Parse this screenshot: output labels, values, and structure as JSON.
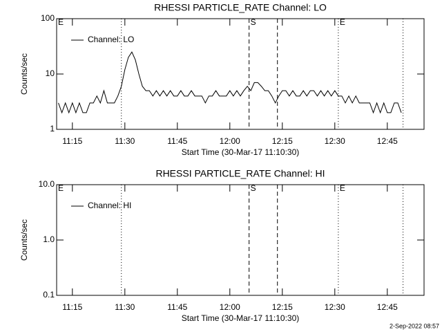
{
  "chart_data": [
    {
      "type": "line",
      "title": "RHESSI PARTICLE_RATE Channel: LO",
      "ylabel": "Counts/sec",
      "xlabel": "Start Time (30-Mar-17 11:10:30)",
      "log": true,
      "ylim": [
        1,
        100
      ],
      "yticks": [
        1,
        10,
        100
      ],
      "xlim": [
        670.5,
        775.5
      ],
      "xticks": [
        {
          "value": 675,
          "label": "11:15"
        },
        {
          "value": 690,
          "label": "11:30"
        },
        {
          "value": 705,
          "label": "11:45"
        },
        {
          "value": 720,
          "label": "12:00"
        },
        {
          "value": 735,
          "label": "12:15"
        },
        {
          "value": 750,
          "label": "12:30"
        },
        {
          "value": 765,
          "label": "12:45"
        }
      ],
      "legend": "upper left",
      "markers": [
        {
          "x": 670.5,
          "label": "E",
          "style": "dotted"
        },
        {
          "x": 689,
          "style": "dotted"
        },
        {
          "x": 725.5,
          "label": "S",
          "style": "dashed"
        },
        {
          "x": 733.6,
          "style": "dashed"
        },
        {
          "x": 751,
          "label": "E",
          "style": "dotted"
        },
        {
          "x": 769.5,
          "style": "dotted"
        }
      ],
      "series": [
        {
          "name": "Channel: LO",
          "color": "#000000",
          "x": [
            671,
            672,
            673,
            674,
            675,
            676,
            677,
            678,
            679,
            680,
            681,
            682,
            683,
            684,
            685,
            686,
            687,
            688,
            689,
            690,
            691,
            692,
            693,
            694,
            695,
            696,
            697,
            698,
            699,
            700,
            701,
            702,
            703,
            704,
            705,
            706,
            707,
            708,
            709,
            710,
            711,
            712,
            713,
            714,
            715,
            716,
            717,
            718,
            719,
            720,
            721,
            722,
            723,
            724,
            725,
            726,
            727,
            728,
            729,
            730,
            731,
            732,
            733,
            734,
            735,
            736,
            737,
            738,
            739,
            740,
            741,
            742,
            743,
            744,
            745,
            746,
            747,
            748,
            749,
            750,
            751,
            752,
            753,
            754,
            755,
            756,
            757,
            758,
            759,
            760,
            761,
            762,
            763,
            764,
            765,
            766,
            767,
            768,
            769
          ],
          "values": [
            3,
            2,
            3,
            2,
            3,
            2,
            3,
            2,
            2,
            3,
            3,
            4,
            3,
            5,
            3,
            3,
            3,
            4,
            6,
            12,
            20,
            25,
            18,
            10,
            6,
            5,
            5,
            4,
            5,
            4,
            5,
            4,
            5,
            4,
            4,
            5,
            4,
            4,
            5,
            4,
            4,
            4,
            3,
            4,
            4,
            5,
            4,
            4,
            4,
            5,
            4,
            5,
            4,
            5,
            6,
            5,
            7,
            7,
            6,
            5,
            5,
            4,
            3,
            4,
            5,
            5,
            4,
            5,
            4,
            4,
            5,
            4,
            5,
            5,
            4,
            5,
            4,
            5,
            4,
            5,
            4,
            4,
            3,
            4,
            3,
            4,
            3,
            3,
            3,
            3,
            2,
            3,
            2,
            3,
            2,
            2,
            3,
            3,
            2
          ]
        }
      ]
    },
    {
      "type": "line",
      "title": "RHESSI PARTICLE_RATE Channel: HI",
      "ylabel": "Counts/sec",
      "xlabel": "Start Time (30-Mar-17 11:10:30)",
      "log": true,
      "ylim": [
        0.1,
        10
      ],
      "yticks": [
        0.1,
        {
          "value": 1,
          "label": "1.0"
        },
        {
          "value": 10,
          "label": "10.0"
        }
      ],
      "xlim": [
        670.5,
        775.5
      ],
      "xticks": [
        {
          "value": 675,
          "label": "11:15"
        },
        {
          "value": 690,
          "label": "11:30"
        },
        {
          "value": 705,
          "label": "11:45"
        },
        {
          "value": 720,
          "label": "12:00"
        },
        {
          "value": 735,
          "label": "12:15"
        },
        {
          "value": 750,
          "label": "12:30"
        },
        {
          "value": 765,
          "label": "12:45"
        }
      ],
      "legend": "upper left",
      "markers": [
        {
          "x": 670.5,
          "label": "E",
          "style": "dotted"
        },
        {
          "x": 689,
          "style": "dotted"
        },
        {
          "x": 725.5,
          "label": "S",
          "style": "dashed"
        },
        {
          "x": 733.6,
          "style": "dashed"
        },
        {
          "x": 751,
          "label": "E",
          "style": "dotted"
        },
        {
          "x": 769.5,
          "style": "dotted"
        }
      ],
      "series": [
        {
          "name": "Channel: HI",
          "color": "#000000",
          "x": [],
          "values": []
        }
      ]
    }
  ],
  "footer": "2-Sep-2022 08:57"
}
